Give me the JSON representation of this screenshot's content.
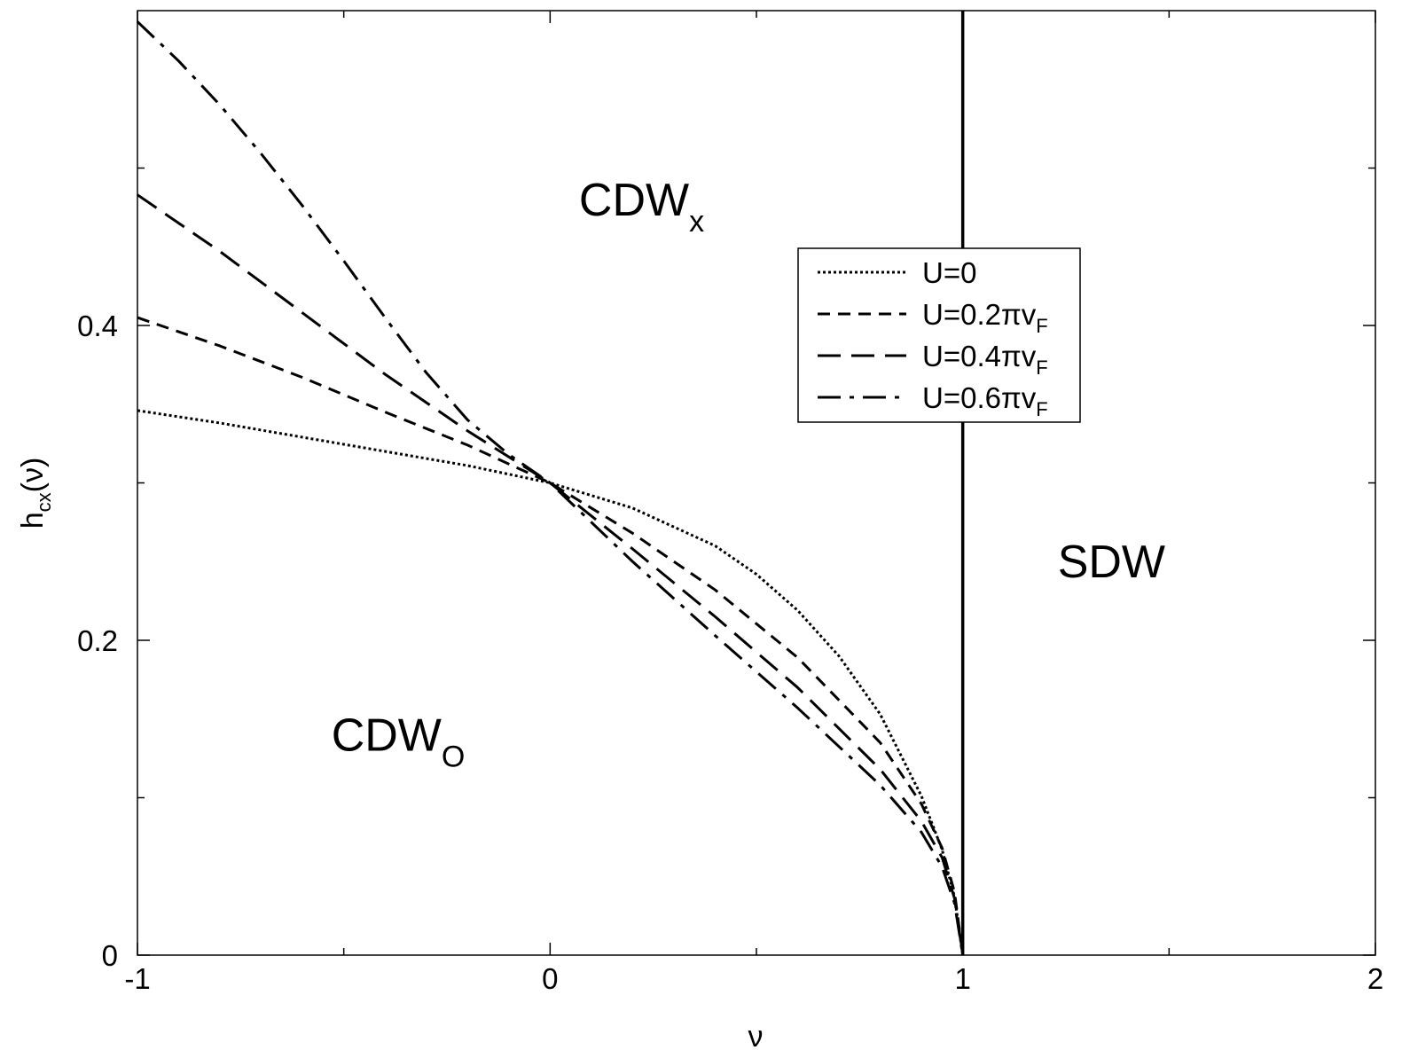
{
  "chart_data": {
    "type": "line",
    "xlabel": "ν",
    "ylabel": {
      "base": "h",
      "sub": "cx",
      "tail": "(ν)"
    },
    "xlim": [
      -1,
      2
    ],
    "ylim": [
      0,
      0.6
    ],
    "x_ticks": [
      {
        "value": -1,
        "label": "-1"
      },
      {
        "value": 0,
        "label": "0"
      },
      {
        "value": 1,
        "label": "1"
      },
      {
        "value": 2,
        "label": "2"
      }
    ],
    "x_minor_ticks": [
      -0.5,
      0.5,
      1.5
    ],
    "y_ticks": [
      {
        "value": 0,
        "label": "0"
      },
      {
        "value": 0.2,
        "label": "0.2"
      },
      {
        "value": 0.4,
        "label": "0.4"
      }
    ],
    "y_minor_ticks": [
      0.1,
      0.3,
      0.5
    ],
    "grid": false,
    "legend_position": "upper-right",
    "series": [
      {
        "name": "U=0",
        "legend": {
          "main": "U=0",
          "sub": ""
        },
        "dash": "dotted",
        "x": [
          -1,
          -0.8,
          -0.6,
          -0.4,
          -0.2,
          0,
          0.2,
          0.4,
          0.5,
          0.6,
          0.7,
          0.8,
          0.9,
          0.95,
          0.98,
          1.0
        ],
        "y": [
          0.346,
          0.338,
          0.329,
          0.32,
          0.311,
          0.3,
          0.284,
          0.26,
          0.242,
          0.219,
          0.19,
          0.153,
          0.101,
          0.067,
          0.037,
          0.0
        ]
      },
      {
        "name": "U=0.2πvF",
        "legend": {
          "main": "U=0.2πv",
          "sub": "F"
        },
        "dash": "dashed",
        "x": [
          -1,
          -0.8,
          -0.6,
          -0.4,
          -0.2,
          0,
          0.2,
          0.4,
          0.6,
          0.8,
          0.9,
          0.95,
          0.98,
          1.0
        ],
        "y": [
          0.405,
          0.387,
          0.367,
          0.345,
          0.324,
          0.3,
          0.268,
          0.232,
          0.189,
          0.135,
          0.096,
          0.068,
          0.04,
          0.0
        ]
      },
      {
        "name": "U=0.4πvF",
        "legend": {
          "main": "U=0.4πv",
          "sub": "F"
        },
        "dash": "longdash",
        "x": [
          -1,
          -0.8,
          -0.6,
          -0.4,
          -0.2,
          0,
          0.2,
          0.4,
          0.6,
          0.8,
          0.9,
          0.95,
          0.98,
          1.0
        ],
        "y": [
          0.483,
          0.447,
          0.408,
          0.369,
          0.333,
          0.3,
          0.258,
          0.215,
          0.17,
          0.118,
          0.085,
          0.062,
          0.036,
          0.0
        ]
      },
      {
        "name": "U=0.6πvF",
        "legend": {
          "main": "U=0.6πv",
          "sub": "F"
        },
        "dash": "dashdot",
        "x": [
          -1,
          -0.9,
          -0.8,
          -0.7,
          -0.6,
          -0.5,
          -0.4,
          -0.3,
          -0.2,
          -0.1,
          0,
          0.2,
          0.4,
          0.6,
          0.8,
          0.9,
          0.95,
          0.98,
          1.0
        ],
        "y": [
          0.593,
          0.568,
          0.54,
          0.509,
          0.476,
          0.441,
          0.405,
          0.37,
          0.34,
          0.318,
          0.3,
          0.25,
          0.203,
          0.157,
          0.108,
          0.078,
          0.056,
          0.033,
          0.0
        ]
      }
    ],
    "boundary": {
      "x": 1,
      "y_from": 0,
      "y_to": 0.6
    },
    "region_labels": [
      {
        "main": "CDW",
        "sub": "x",
        "x": 0.07,
        "y": 0.47
      },
      {
        "main": "CDW",
        "sub": "O",
        "x": -0.53,
        "y": 0.13
      },
      {
        "main": "SDW",
        "sub": "",
        "x": 1.23,
        "y": 0.24
      }
    ]
  }
}
